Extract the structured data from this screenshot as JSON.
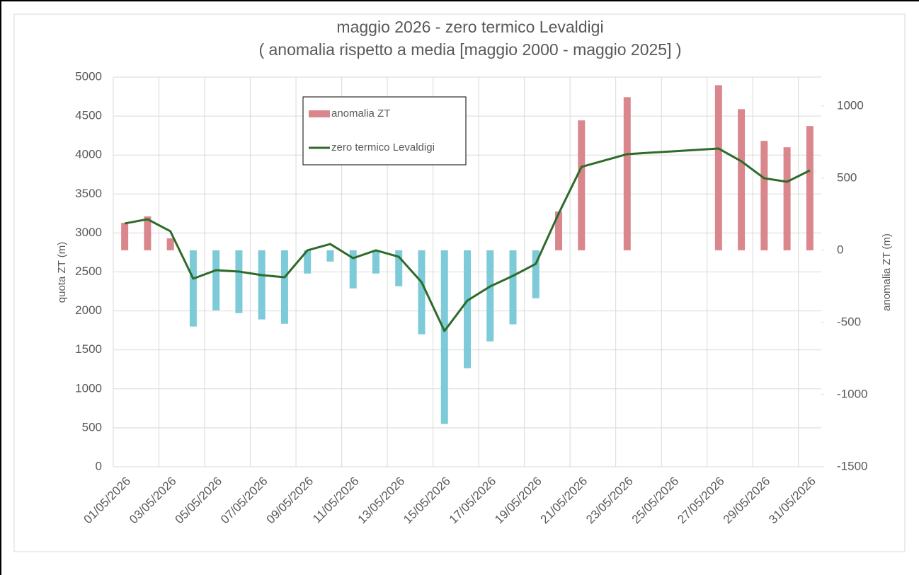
{
  "chart_data": {
    "type": "bar",
    "title": "maggio 2026 - zero termico Levaldigi",
    "subtitle": "( anomalia rispetto a media [maggio 2000 - maggio 2025] )",
    "ylabel": "quota ZT (m)",
    "y2label": "anomalia ZT (m)",
    "categories": [
      "01/05/2026",
      null,
      "03/05/2026",
      null,
      "05/05/2026",
      null,
      "07/05/2026",
      null,
      "09/05/2026",
      null,
      "11/05/2026",
      null,
      "13/05/2026",
      null,
      "15/05/2026",
      null,
      "17/05/2026",
      null,
      "19/05/2026",
      null,
      "21/05/2026",
      null,
      "23/05/2026",
      null,
      "25/05/2026",
      null,
      "27/05/2026",
      null,
      "29/05/2026",
      null,
      "31/05/2026"
    ],
    "series": [
      {
        "name": "anomalia ZT",
        "type": "bar",
        "axis": "y2",
        "color": "#d9878d",
        "negative_color": "#7dcad8",
        "values": [
          190,
          235,
          83,
          -528,
          -416,
          -435,
          -479,
          -509,
          -161,
          -78,
          -264,
          -161,
          -249,
          -582,
          -1203,
          -817,
          -631,
          -513,
          -332,
          269,
          900,
          null,
          1061,
          null,
          null,
          null,
          1144,
          978,
          758,
          714,
          861
        ]
      },
      {
        "name": "zero termico Levaldigi",
        "type": "line",
        "axis": "y",
        "color": "#2e6b2a",
        "values": [
          3122,
          3176,
          3022,
          2414,
          2523,
          2505,
          2459,
          2432,
          2777,
          2858,
          2677,
          2777,
          2695,
          2368,
          1742,
          2132,
          2314,
          2450,
          2604,
          3249,
          3848,
          3930,
          4011,
          4030,
          4047,
          4065,
          4084,
          3920,
          3702,
          3657,
          3802
        ]
      }
    ],
    "ylim": [
      0,
      5000
    ],
    "yticks": [
      0,
      500,
      1000,
      1500,
      2000,
      2500,
      3000,
      3500,
      4000,
      4500,
      5000
    ],
    "y2lim": [
      -1500,
      1200
    ],
    "y2ticks": [
      -1500,
      -1000,
      -500,
      0,
      500,
      1000
    ],
    "grid": true,
    "legend": "upper center"
  }
}
